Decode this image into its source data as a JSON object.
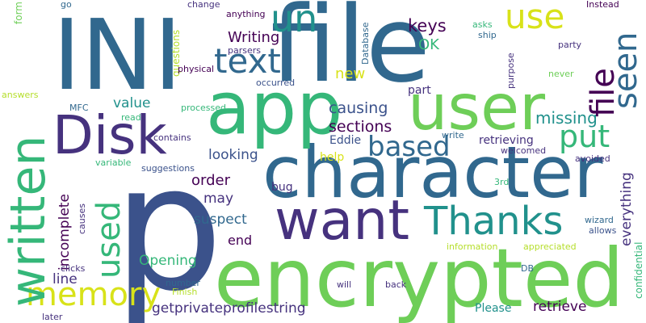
{
  "palette": {
    "navy": "#3b528b",
    "dark_purple": "#46327e",
    "indigo": "#440154",
    "deep_purple": "#482878",
    "steel_blue": "#31688e",
    "teal": "#21918c",
    "green": "#35b779",
    "light_green": "#6ece58",
    "lime": "#b5de2b",
    "yellow": "#d8e219"
  },
  "words": [
    "p",
    "INI",
    "file",
    "encrypted",
    "character",
    "app",
    "user",
    "want",
    "Disk",
    "written",
    "Thanks",
    "un",
    "text",
    "use",
    "memory",
    "seen",
    "file",
    "based",
    "put",
    "used",
    "causing",
    "sections",
    "missing",
    "everything",
    "keys",
    "Writing",
    "OK",
    "new",
    "value",
    "order",
    "looking",
    "may",
    "suspect",
    "end",
    "Opening",
    "line",
    "getprivateprofilestring",
    "retrieve",
    "Please",
    "incomplete",
    "retrieving",
    "Eddie",
    "help",
    "bug",
    "part",
    "Database",
    "Instead",
    "ship",
    "asks",
    "party",
    "purpose",
    "never",
    "avoided",
    "welcomed",
    "3rd",
    "wizard",
    "allows",
    "appreciated",
    "confidential",
    "information",
    "DB",
    "back",
    "will",
    "Finish",
    "number",
    "clicks",
    "later",
    "far",
    "answers",
    "form",
    "MFC",
    "read",
    "processed",
    "contains",
    "variable",
    "suggestions",
    "causes",
    "questions",
    "change",
    "anything",
    "parsers",
    "go",
    "physical",
    "occurred",
    "write"
  ]
}
